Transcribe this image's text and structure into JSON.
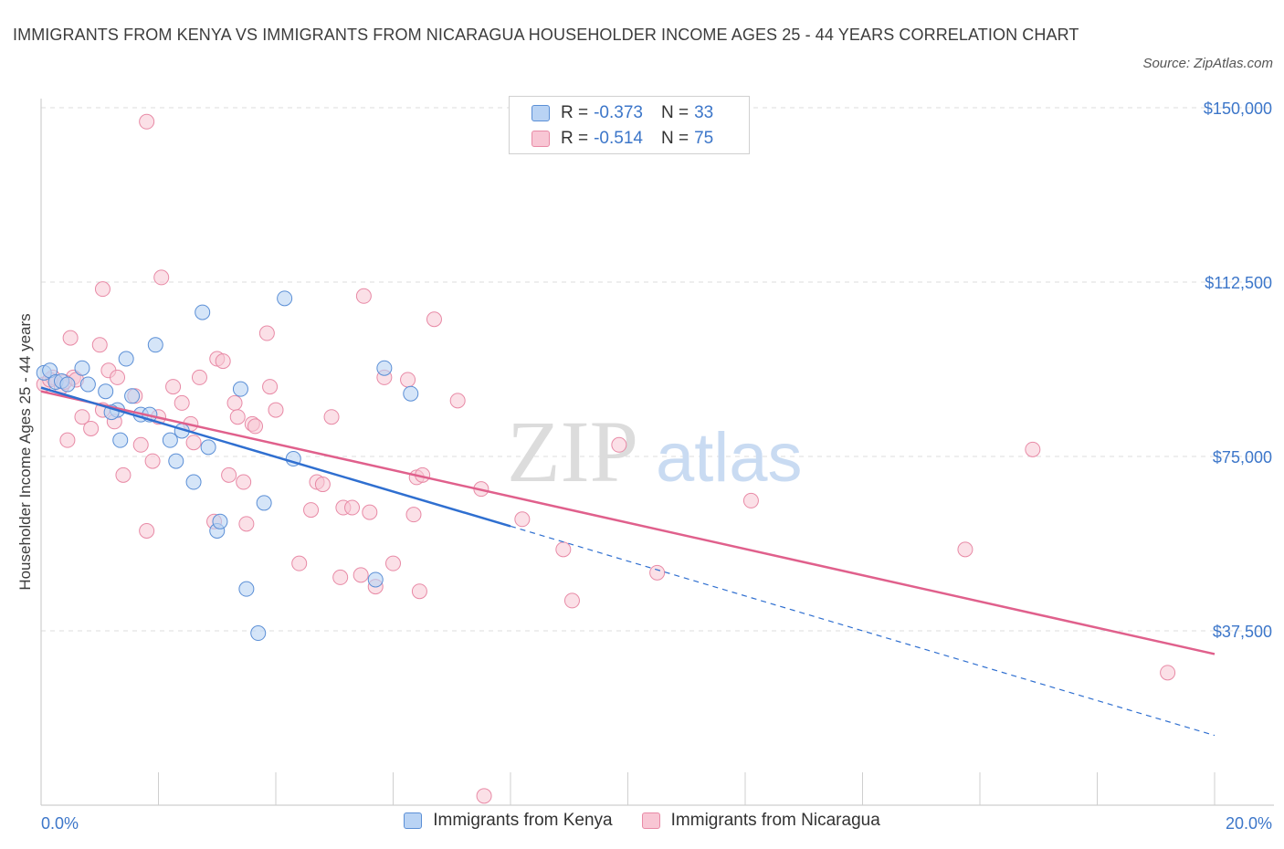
{
  "title": "IMMIGRANTS FROM KENYA VS IMMIGRANTS FROM NICARAGUA HOUSEHOLDER INCOME AGES 25 - 44 YEARS CORRELATION CHART",
  "source": "Source: ZipAtlas.com",
  "watermark": {
    "zip": "ZIP",
    "atlas": "atlas"
  },
  "legend": {
    "r_label": "R =",
    "n_label": "N =",
    "kenya": {
      "r": "-0.373",
      "n": "33"
    },
    "nicaragua": {
      "r": "-0.514",
      "n": "75"
    }
  },
  "colors": {
    "kenya_fill": "#b9d3f4",
    "kenya_stroke": "#5b8fd6",
    "kenya_line": "#2f6fd0",
    "nicaragua_fill": "#f8c6d4",
    "nicaragua_stroke": "#e88aa6",
    "nicaragua_line": "#e0608c",
    "tick_text": "#3c76c9"
  },
  "chart_data": {
    "type": "scatter",
    "title": "IMMIGRANTS FROM KENYA VS IMMIGRANTS FROM NICARAGUA HOUSEHOLDER INCOME AGES 25 - 44 YEARS CORRELATION CHART",
    "xlabel": "",
    "ylabel": "Householder Income Ages 25 - 44 years",
    "xlim": [
      0,
      20
    ],
    "ylim": [
      0,
      150000
    ],
    "x_tick_labels": [
      "0.0%",
      "20.0%"
    ],
    "y_ticks": [
      37500,
      75000,
      112500,
      150000
    ],
    "y_tick_labels": [
      "$37,500",
      "$75,000",
      "$112,500",
      "$150,000"
    ],
    "grid": true,
    "legend_position": "top-center",
    "series": [
      {
        "name": "Immigrants from Kenya",
        "points": [
          [
            0.05,
            93000
          ],
          [
            0.15,
            93500
          ],
          [
            0.25,
            91000
          ],
          [
            0.35,
            91200
          ],
          [
            0.45,
            90500
          ],
          [
            0.7,
            94000
          ],
          [
            0.8,
            90500
          ],
          [
            1.1,
            89000
          ],
          [
            1.3,
            85000
          ],
          [
            1.2,
            84500
          ],
          [
            1.45,
            96000
          ],
          [
            1.55,
            88000
          ],
          [
            1.7,
            84000
          ],
          [
            1.85,
            84000
          ],
          [
            1.95,
            99000
          ],
          [
            1.35,
            78500
          ],
          [
            2.2,
            78500
          ],
          [
            2.3,
            74000
          ],
          [
            2.4,
            80500
          ],
          [
            2.6,
            69500
          ],
          [
            2.85,
            77000
          ],
          [
            2.75,
            106000
          ],
          [
            3.0,
            59000
          ],
          [
            3.05,
            61000
          ],
          [
            3.4,
            89500
          ],
          [
            3.5,
            46500
          ],
          [
            3.7,
            37000
          ],
          [
            3.8,
            65000
          ],
          [
            4.15,
            109000
          ],
          [
            4.3,
            74500
          ],
          [
            5.7,
            48500
          ],
          [
            5.85,
            94000
          ],
          [
            6.3,
            88500
          ]
        ],
        "trend": {
          "x": [
            0,
            8
          ],
          "y": [
            89800,
            60000
          ],
          "dashed_extension": {
            "x": [
              8,
              20
            ],
            "y": [
              60000,
              15000
            ]
          }
        }
      },
      {
        "name": "Immigrants from Nicaragua",
        "points": [
          [
            0.05,
            90500
          ],
          [
            0.2,
            92000
          ],
          [
            0.35,
            90000
          ],
          [
            0.45,
            78500
          ],
          [
            0.5,
            100500
          ],
          [
            0.55,
            92000
          ],
          [
            0.7,
            83500
          ],
          [
            0.85,
            81000
          ],
          [
            1.05,
            85000
          ],
          [
            1.05,
            111000
          ],
          [
            1.15,
            93500
          ],
          [
            1.25,
            82500
          ],
          [
            1.3,
            92000
          ],
          [
            1.4,
            71000
          ],
          [
            1.6,
            88000
          ],
          [
            1.7,
            77500
          ],
          [
            1.8,
            59000
          ],
          [
            1.9,
            74000
          ],
          [
            2.0,
            83500
          ],
          [
            2.05,
            113500
          ],
          [
            2.25,
            90000
          ],
          [
            2.4,
            86500
          ],
          [
            2.55,
            82000
          ],
          [
            2.6,
            78000
          ],
          [
            2.7,
            92000
          ],
          [
            2.95,
            61000
          ],
          [
            3.0,
            96000
          ],
          [
            3.1,
            95500
          ],
          [
            3.2,
            71000
          ],
          [
            3.3,
            86500
          ],
          [
            3.35,
            83500
          ],
          [
            3.45,
            69500
          ],
          [
            3.5,
            60500
          ],
          [
            3.6,
            82000
          ],
          [
            3.65,
            81500
          ],
          [
            3.85,
            101500
          ],
          [
            3.9,
            90000
          ],
          [
            4.0,
            85000
          ],
          [
            4.4,
            52000
          ],
          [
            4.6,
            63500
          ],
          [
            4.7,
            69500
          ],
          [
            4.8,
            69000
          ],
          [
            4.95,
            83500
          ],
          [
            5.1,
            49000
          ],
          [
            5.15,
            64000
          ],
          [
            5.3,
            64000
          ],
          [
            5.45,
            49500
          ],
          [
            5.5,
            109500
          ],
          [
            5.6,
            63000
          ],
          [
            5.7,
            47000
          ],
          [
            5.85,
            92000
          ],
          [
            6.0,
            52000
          ],
          [
            6.25,
            91500
          ],
          [
            6.35,
            62500
          ],
          [
            6.4,
            70500
          ],
          [
            6.45,
            46000
          ],
          [
            6.5,
            71000
          ],
          [
            6.7,
            104500
          ],
          [
            7.1,
            87000
          ],
          [
            7.5,
            68000
          ],
          [
            8.2,
            61500
          ],
          [
            8.9,
            55000
          ],
          [
            9.05,
            44000
          ],
          [
            9.85,
            77500
          ],
          [
            10.5,
            50000
          ],
          [
            12.1,
            65500
          ],
          [
            15.75,
            55000
          ],
          [
            16.9,
            76500
          ],
          [
            19.2,
            28500
          ],
          [
            7.55,
            2000
          ],
          [
            1.8,
            147000
          ],
          [
            1.0,
            99000
          ],
          [
            0.15,
            91500
          ],
          [
            0.4,
            91000
          ],
          [
            0.6,
            91500
          ]
        ],
        "trend": {
          "x": [
            0,
            20
          ],
          "y": [
            89000,
            32500
          ]
        }
      }
    ]
  },
  "bottom_legend": {
    "kenya": "Immigrants from Kenya",
    "nicaragua": "Immigrants from Nicaragua"
  }
}
